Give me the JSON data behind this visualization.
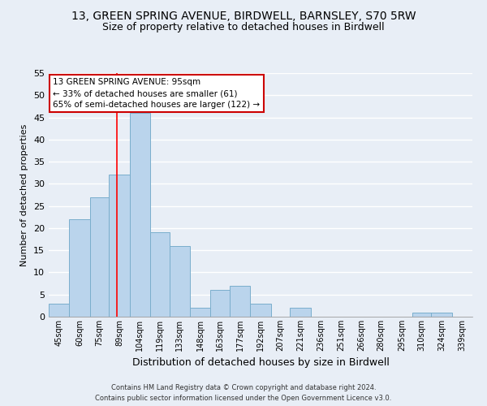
{
  "title": "13, GREEN SPRING AVENUE, BIRDWELL, BARNSLEY, S70 5RW",
  "subtitle": "Size of property relative to detached houses in Birdwell",
  "xlabel": "Distribution of detached houses by size in Birdwell",
  "ylabel": "Number of detached properties",
  "bin_labels": [
    "45sqm",
    "60sqm",
    "75sqm",
    "89sqm",
    "104sqm",
    "119sqm",
    "133sqm",
    "148sqm",
    "163sqm",
    "177sqm",
    "192sqm",
    "207sqm",
    "221sqm",
    "236sqm",
    "251sqm",
    "266sqm",
    "280sqm",
    "295sqm",
    "310sqm",
    "324sqm",
    "339sqm"
  ],
  "bin_edges": [
    45,
    60,
    75,
    89,
    104,
    119,
    133,
    148,
    163,
    177,
    192,
    207,
    221,
    236,
    251,
    266,
    280,
    295,
    310,
    324,
    339,
    354
  ],
  "counts": [
    3,
    22,
    27,
    32,
    46,
    19,
    16,
    2,
    6,
    7,
    3,
    0,
    2,
    0,
    0,
    0,
    0,
    0,
    1,
    1,
    0
  ],
  "bar_color": "#bad4ec",
  "bar_edge_color": "#7aaecc",
  "property_line_x": 95,
  "property_line_color": "red",
  "ylim": [
    0,
    55
  ],
  "yticks": [
    0,
    5,
    10,
    15,
    20,
    25,
    30,
    35,
    40,
    45,
    50,
    55
  ],
  "annotation_title": "13 GREEN SPRING AVENUE: 95sqm",
  "annotation_line1": "← 33% of detached houses are smaller (61)",
  "annotation_line2": "65% of semi-detached houses are larger (122) →",
  "annotation_box_color": "white",
  "annotation_box_edge": "#cc0000",
  "footer_line1": "Contains HM Land Registry data © Crown copyright and database right 2024.",
  "footer_line2": "Contains public sector information licensed under the Open Government Licence v3.0.",
  "bg_color": "#e8eef6",
  "grid_color": "white",
  "title_fontsize": 10,
  "subtitle_fontsize": 9
}
